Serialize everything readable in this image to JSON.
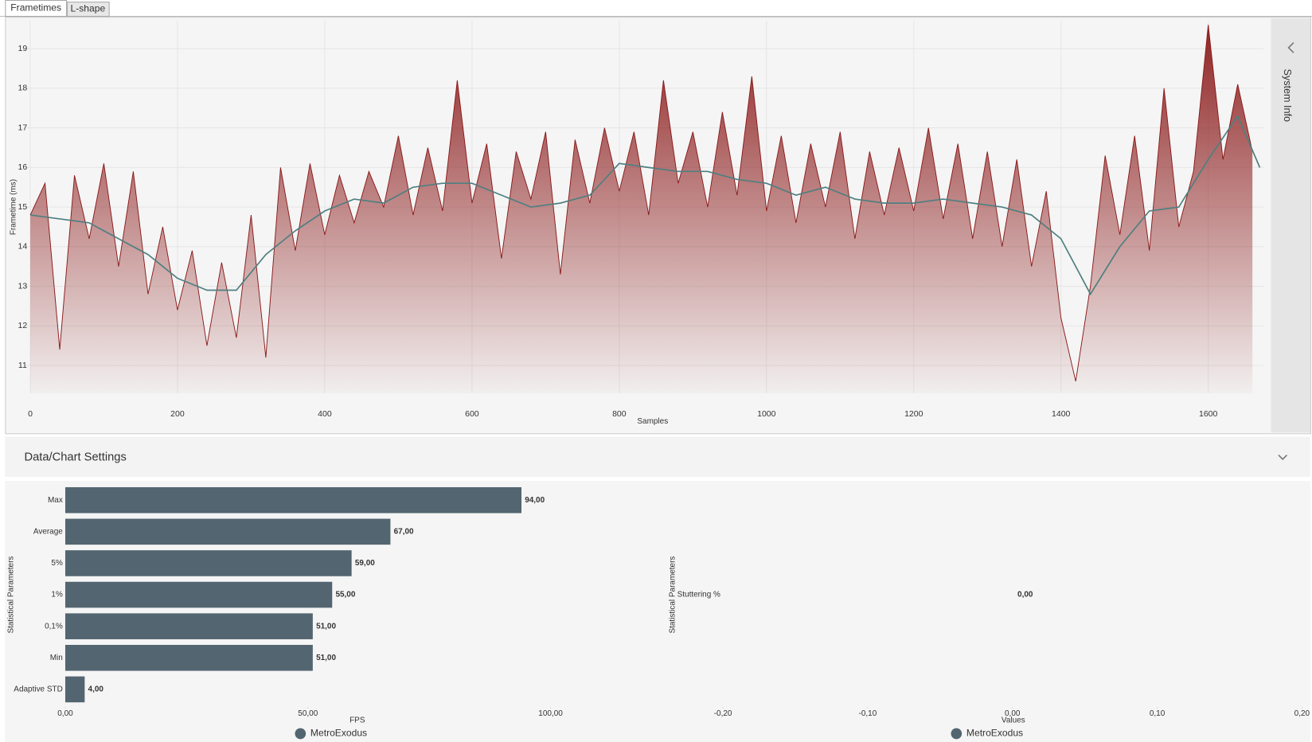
{
  "tabs": [
    "Frametimes",
    "L-shape"
  ],
  "side_panel": "System Info",
  "settings_title": "Data/Chart Settings",
  "chart_data": [
    {
      "type": "line",
      "y_label": "Frametime (ms)",
      "x_label": "Samples",
      "xlim": [
        -7,
        1675
      ],
      "ylim": [
        10.3,
        19.7
      ],
      "xticks": [
        0,
        200,
        400,
        600,
        800,
        1000,
        1200,
        1400,
        1600
      ],
      "yticks": [
        11,
        12,
        13,
        14,
        15,
        16,
        17,
        18,
        19
      ],
      "grid": true,
      "series": [
        {
          "color": "#8b1a1a",
          "area": true,
          "x": [
            0,
            20,
            40,
            60,
            80,
            100,
            120,
            140,
            160,
            180,
            200,
            220,
            240,
            260,
            280,
            300,
            320,
            340,
            360,
            380,
            400,
            420,
            440,
            460,
            480,
            500,
            520,
            540,
            560,
            580,
            600,
            620,
            640,
            660,
            680,
            700,
            720,
            740,
            760,
            780,
            800,
            820,
            840,
            860,
            880,
            900,
            920,
            940,
            960,
            980,
            1000,
            1020,
            1040,
            1060,
            1080,
            1100,
            1120,
            1140,
            1160,
            1180,
            1200,
            1220,
            1240,
            1260,
            1280,
            1300,
            1320,
            1340,
            1360,
            1380,
            1400,
            1420,
            1440,
            1460,
            1480,
            1500,
            1520,
            1540,
            1560,
            1580,
            1600,
            1620,
            1640,
            1660
          ],
          "values": [
            14.8,
            15.6,
            11.4,
            15.8,
            14.2,
            16.1,
            13.5,
            15.9,
            12.8,
            14.5,
            12.4,
            13.9,
            11.5,
            13.6,
            11.7,
            14.8,
            11.2,
            16.0,
            13.9,
            16.1,
            14.3,
            15.8,
            14.6,
            15.9,
            15.0,
            16.8,
            14.8,
            16.5,
            14.9,
            18.2,
            15.1,
            16.6,
            13.7,
            16.4,
            15.2,
            16.9,
            13.3,
            16.7,
            15.1,
            17.0,
            15.4,
            16.9,
            14.8,
            18.2,
            15.6,
            16.9,
            15.0,
            17.4,
            15.3,
            18.3,
            14.9,
            16.8,
            14.6,
            16.6,
            15.0,
            16.9,
            14.2,
            16.4,
            14.8,
            16.5,
            14.9,
            17.0,
            14.7,
            16.6,
            14.2,
            16.4,
            14.0,
            16.2,
            13.5,
            15.4,
            12.2,
            10.6,
            13.0,
            16.3,
            14.3,
            16.8,
            13.9,
            18.0,
            14.5,
            15.9,
            19.6,
            16.2,
            18.1,
            16.4
          ]
        },
        {
          "color": "#4f7f80",
          "x": [
            0,
            40,
            80,
            120,
            160,
            200,
            240,
            280,
            320,
            360,
            400,
            440,
            480,
            520,
            560,
            600,
            640,
            680,
            720,
            760,
            800,
            840,
            880,
            920,
            960,
            1000,
            1040,
            1080,
            1120,
            1160,
            1200,
            1240,
            1280,
            1320,
            1360,
            1400,
            1440,
            1480,
            1520,
            1560,
            1600,
            1640,
            1670
          ],
          "values": [
            14.8,
            14.7,
            14.6,
            14.2,
            13.8,
            13.2,
            12.9,
            12.9,
            13.8,
            14.4,
            14.9,
            15.2,
            15.1,
            15.5,
            15.6,
            15.6,
            15.3,
            15.0,
            15.1,
            15.3,
            16.1,
            16.0,
            15.9,
            15.9,
            15.7,
            15.6,
            15.3,
            15.5,
            15.2,
            15.1,
            15.1,
            15.2,
            15.1,
            15.0,
            14.8,
            14.2,
            12.8,
            14.0,
            14.9,
            15.0,
            16.2,
            17.3,
            16.0
          ]
        }
      ]
    },
    {
      "type": "hbar",
      "y_label": "Statistical Parameters",
      "x_label": "FPS",
      "categories": [
        "Max",
        "Average",
        "5%",
        "1%",
        "0,1%",
        "Min",
        "Adaptive STD"
      ],
      "xlim": [
        0,
        120
      ],
      "xticks": [
        {
          "value": 0,
          "label": "0,00"
        },
        {
          "value": 50,
          "label": "50,00"
        },
        {
          "value": 100,
          "label": "100,00"
        }
      ],
      "series": [
        {
          "name": "MetroExodus",
          "color": "#536570",
          "values": [
            94,
            67,
            59,
            55,
            51,
            51,
            4
          ],
          "value_labels": [
            "94,00",
            "67,00",
            "59,00",
            "55,00",
            "51,00",
            "51,00",
            "4,00"
          ]
        }
      ]
    },
    {
      "type": "hbar",
      "y_label": "Statistical Parameters",
      "x_label": "Values",
      "categories": [
        "Stuttering %"
      ],
      "xlim": [
        -0.2,
        0.2
      ],
      "xticks": [
        {
          "value": -0.2,
          "label": "-0,20"
        },
        {
          "value": -0.1,
          "label": "-0,10"
        },
        {
          "value": 0,
          "label": "0,00"
        },
        {
          "value": 0.1,
          "label": "0,10"
        },
        {
          "value": 0.2,
          "label": "0,20"
        }
      ],
      "series": [
        {
          "name": "MetroExodus",
          "color": "#536570",
          "values": [
            0
          ],
          "value_labels": [
            "0,00"
          ]
        }
      ]
    }
  ]
}
